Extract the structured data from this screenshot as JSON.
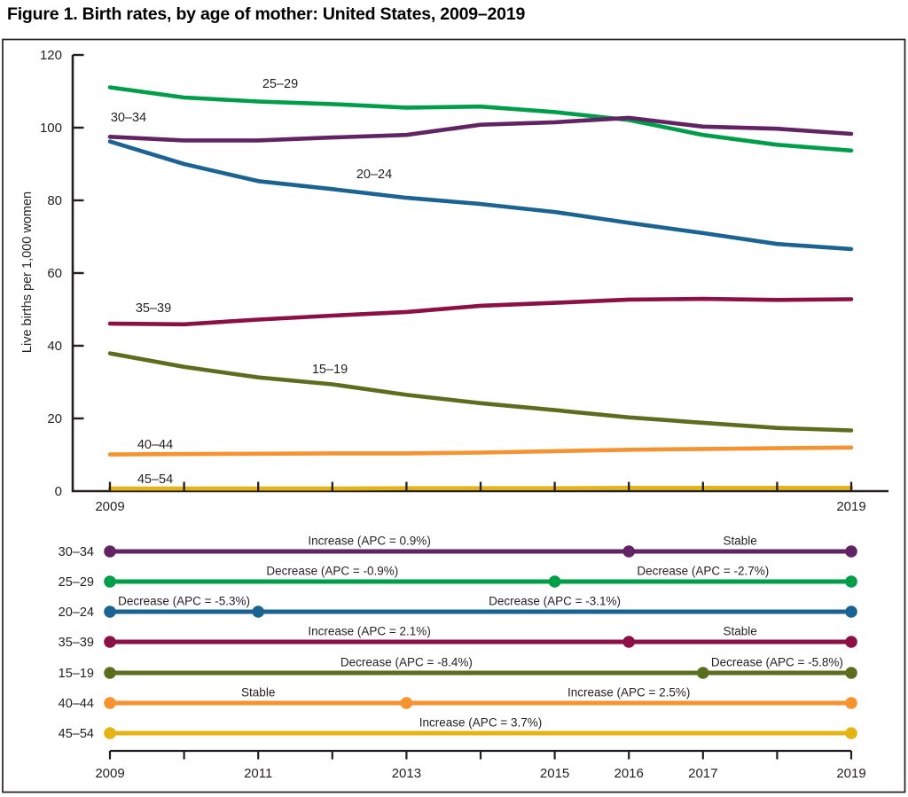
{
  "title": "Figure 1. Birth rates, by age of mother: United States, 2009–2019",
  "colors": {
    "text": "#231f20",
    "axis": "#231f20",
    "background": "#ffffff"
  },
  "chart_data": [
    {
      "type": "line",
      "title": "",
      "xlabel": "",
      "ylabel": "Live births per 1,000 women",
      "x": [
        2009,
        2010,
        2011,
        2012,
        2013,
        2014,
        2015,
        2016,
        2017,
        2018,
        2019
      ],
      "xlim": [
        2009,
        2019
      ],
      "ylim": [
        0,
        120
      ],
      "yticks": [
        0,
        20,
        40,
        60,
        80,
        100,
        120
      ],
      "x_axis_labels": [
        "2009",
        "2019"
      ],
      "grid": false,
      "legend_position": "inline-labels",
      "series": [
        {
          "name": "20–24",
          "color": "#1b6392",
          "values": [
            96.2,
            90.0,
            85.3,
            83.1,
            80.7,
            79.0,
            76.8,
            73.8,
            71.0,
            68.0,
            66.6
          ]
        },
        {
          "name": "25–29",
          "color": "#009e49",
          "values": [
            111.1,
            108.3,
            107.2,
            106.5,
            105.5,
            105.8,
            104.3,
            102.1,
            98.0,
            95.3,
            93.7
          ]
        },
        {
          "name": "30–34",
          "color": "#622364",
          "values": [
            97.5,
            96.5,
            96.5,
            97.3,
            98.0,
            100.8,
            101.5,
            102.7,
            100.3,
            99.7,
            98.3
          ]
        },
        {
          "name": "35–39",
          "color": "#8c0f46",
          "values": [
            46.1,
            45.9,
            47.2,
            48.3,
            49.3,
            51.0,
            51.8,
            52.7,
            52.9,
            52.6,
            52.8
          ]
        },
        {
          "name": "15–19",
          "color": "#5b6e1e",
          "values": [
            37.9,
            34.2,
            31.3,
            29.4,
            26.5,
            24.2,
            22.3,
            20.3,
            18.8,
            17.4,
            16.7
          ]
        },
        {
          "name": "40–44",
          "color": "#f69230",
          "values": [
            10.1,
            10.2,
            10.3,
            10.4,
            10.4,
            10.6,
            11.0,
            11.4,
            11.6,
            11.8,
            12.0
          ]
        },
        {
          "name": "45–54",
          "color": "#e4b414",
          "values": [
            0.7,
            0.7,
            0.7,
            0.7,
            0.8,
            0.8,
            0.8,
            0.9,
            0.9,
            0.9,
            0.9
          ]
        }
      ]
    },
    {
      "type": "trend-timeline",
      "xlim": [
        2009,
        2019
      ],
      "x_axis_labels": [
        "2009",
        "2011",
        "2013",
        "2015",
        "2016",
        "2017",
        "2019"
      ],
      "rows": [
        {
          "label": "30–34",
          "color": "#622364",
          "breakpoints": [
            2016
          ],
          "segments": [
            {
              "from": 2009,
              "to": 2016,
              "label": "Increase (APC = 0.9%)"
            },
            {
              "from": 2016,
              "to": 2019,
              "label": "Stable"
            }
          ]
        },
        {
          "label": "25–29",
          "color": "#009e49",
          "breakpoints": [
            2015
          ],
          "segments": [
            {
              "from": 2009,
              "to": 2015,
              "label": "Decrease (APC = -0.9%)"
            },
            {
              "from": 2015,
              "to": 2019,
              "label": "Decrease (APC = -2.7%)"
            }
          ]
        },
        {
          "label": "20–24",
          "color": "#1b6392",
          "breakpoints": [
            2011
          ],
          "segments": [
            {
              "from": 2009,
              "to": 2011,
              "label": "Decrease (APC = -5.3%)"
            },
            {
              "from": 2011,
              "to": 2019,
              "label": "Decrease (APC = -3.1%)"
            }
          ]
        },
        {
          "label": "35–39",
          "color": "#8c0f46",
          "breakpoints": [
            2016
          ],
          "segments": [
            {
              "from": 2009,
              "to": 2016,
              "label": "Increase (APC = 2.1%)"
            },
            {
              "from": 2016,
              "to": 2019,
              "label": "Stable"
            }
          ]
        },
        {
          "label": "15–19",
          "color": "#5b6e1e",
          "breakpoints": [
            2017
          ],
          "segments": [
            {
              "from": 2009,
              "to": 2017,
              "label": "Decrease (APC = -8.4%)"
            },
            {
              "from": 2017,
              "to": 2019,
              "label": "Decrease (APC = -5.8%)"
            }
          ]
        },
        {
          "label": "40–44",
          "color": "#f69230",
          "breakpoints": [
            2013
          ],
          "segments": [
            {
              "from": 2009,
              "to": 2013,
              "label": "Stable"
            },
            {
              "from": 2013,
              "to": 2019,
              "label": "Increase (APC = 2.5%)"
            }
          ]
        },
        {
          "label": "45–54",
          "color": "#e4b414",
          "breakpoints": [],
          "segments": [
            {
              "from": 2009,
              "to": 2019,
              "label": "Increase (APC = 3.7%)"
            }
          ]
        }
      ]
    }
  ]
}
